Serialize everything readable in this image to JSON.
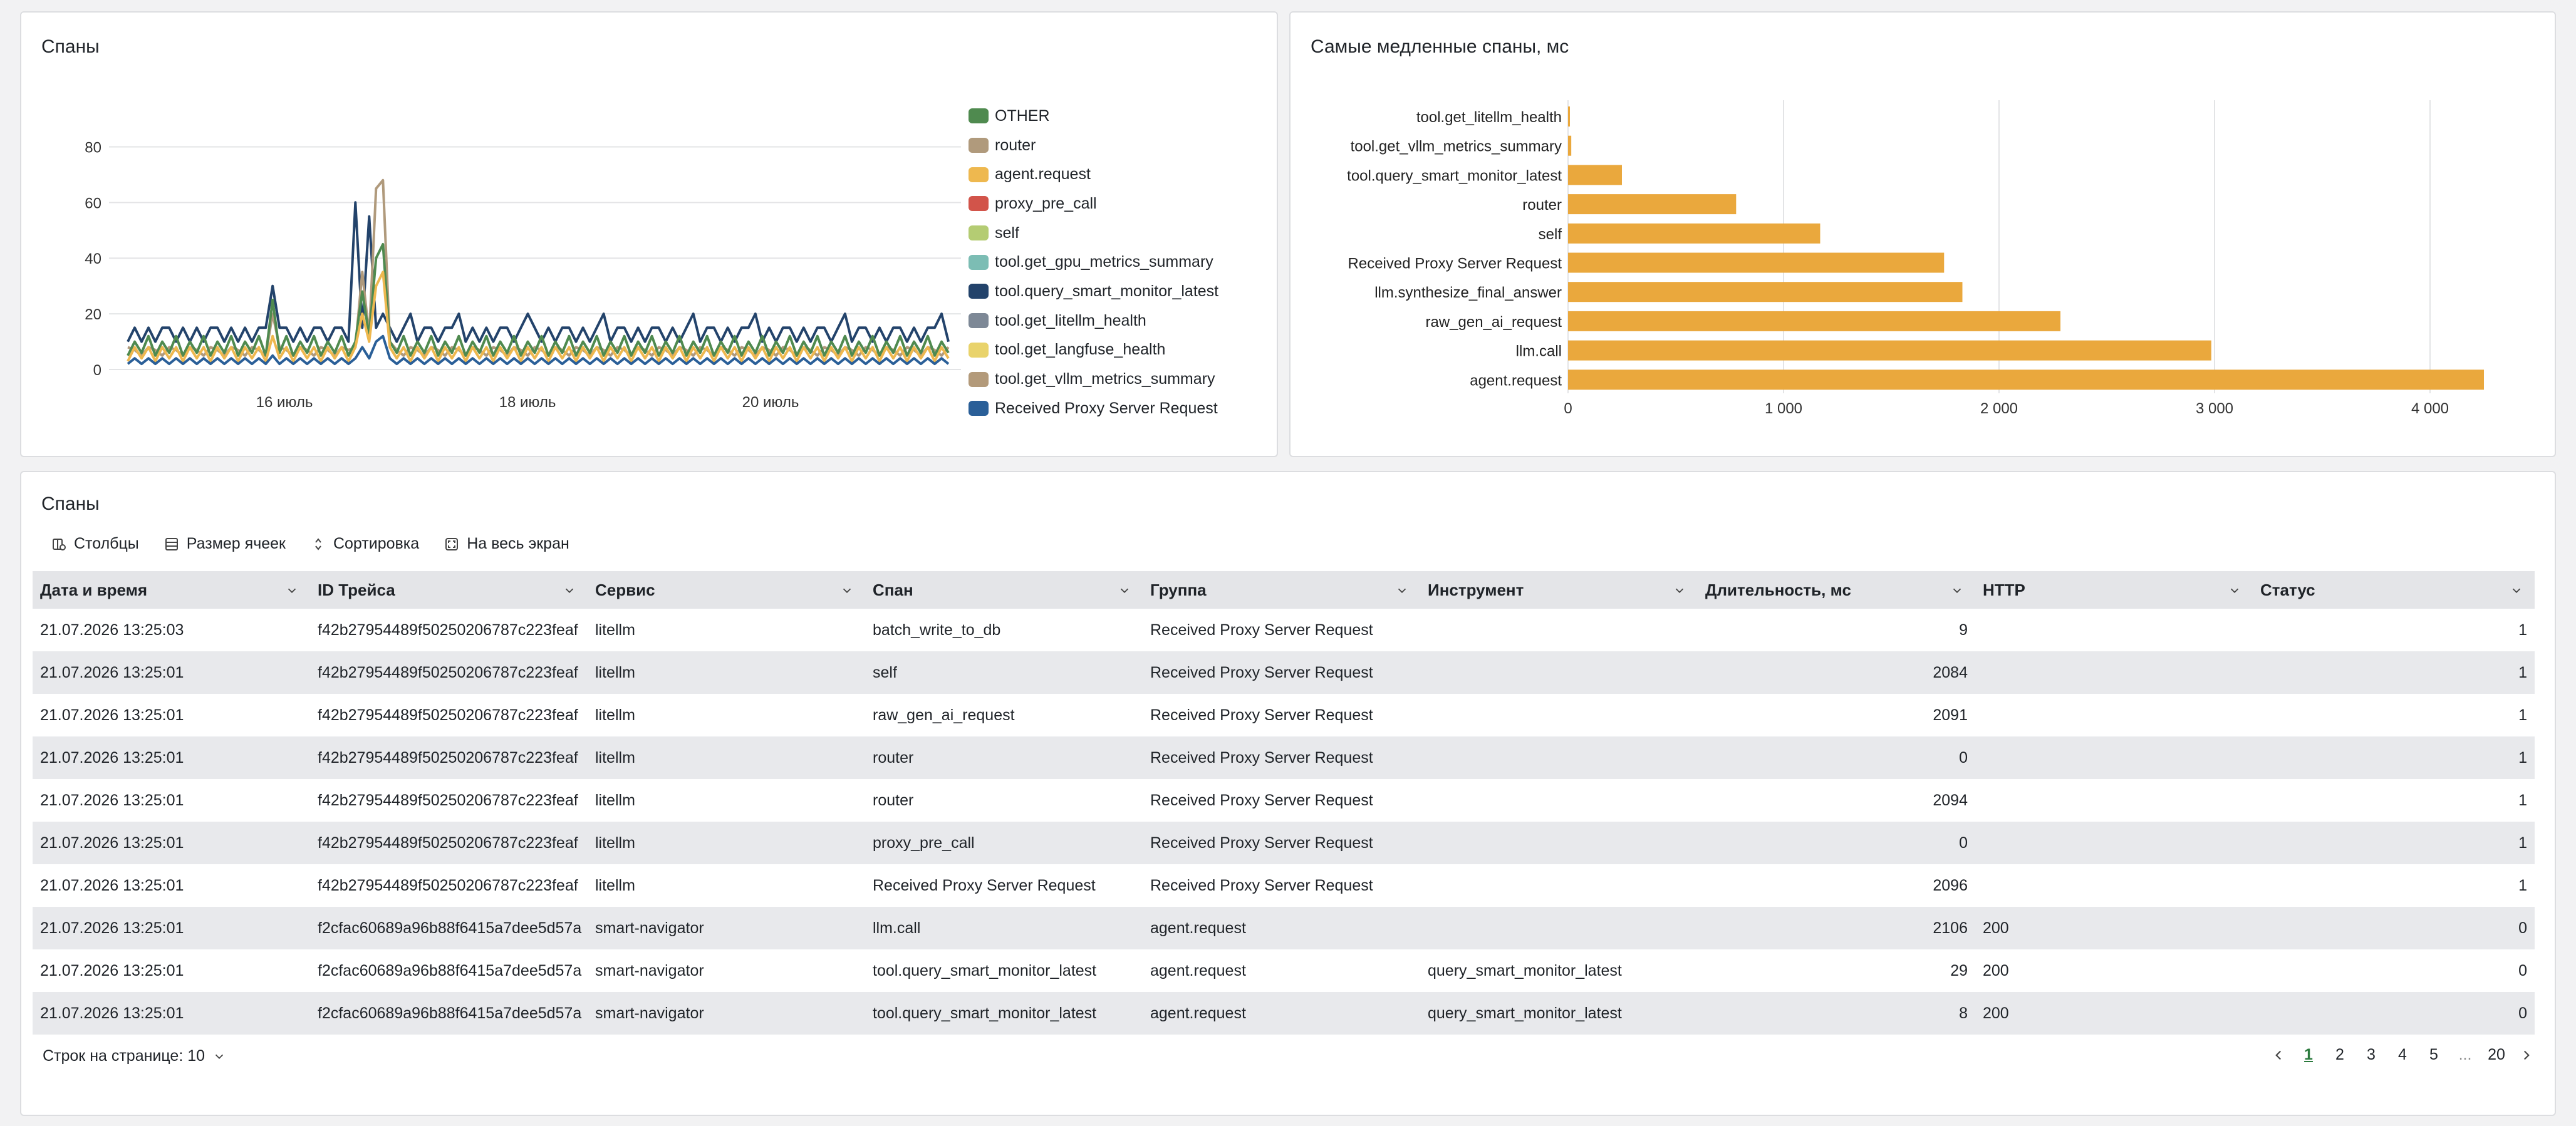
{
  "spans_chart": {
    "title": "Спаны",
    "legend": [
      {
        "label": "OTHER",
        "color": "#4f8a4f"
      },
      {
        "label": "router",
        "color": "#b09a7c"
      },
      {
        "label": "agent.request",
        "color": "#eeb84f"
      },
      {
        "label": "proxy_pre_call",
        "color": "#d2544a"
      },
      {
        "label": "self",
        "color": "#b4cc73"
      },
      {
        "label": "tool.get_gpu_metrics_summary",
        "color": "#7cbdb4"
      },
      {
        "label": "tool.query_smart_monitor_latest",
        "color": "#23436b"
      },
      {
        "label": "tool.get_litellm_health",
        "color": "#7d8896"
      },
      {
        "label": "tool.get_langfuse_health",
        "color": "#e9d36b"
      },
      {
        "label": "tool.get_vllm_metrics_summary",
        "color": "#b39a7a"
      },
      {
        "label": "Received Proxy Server Request",
        "color": "#2a5f98"
      }
    ],
    "y_ticks": [
      "0",
      "20",
      "40",
      "60",
      "80"
    ],
    "x_ticks": [
      "16 июль",
      "18 июль",
      "20 июль"
    ]
  },
  "chart_data": [
    {
      "type": "line",
      "title": "Спаны",
      "x_range": [
        "2026-07-14T12:00",
        "2026-07-21T13:25"
      ],
      "x_tick_labels": [
        "16 июль",
        "18 июль",
        "20 июль"
      ],
      "ylim": [
        0,
        90
      ],
      "grid": true,
      "legend_position": "right",
      "series": [
        {
          "name": "tool.query_smart_monitor_latest",
          "values": [
            10,
            15,
            10,
            15,
            10,
            15,
            15,
            10,
            15,
            10,
            15,
            10,
            15,
            15,
            10,
            15,
            10,
            15,
            10,
            15,
            15,
            30,
            15,
            15,
            10,
            15,
            10,
            15,
            15,
            10,
            15,
            15,
            10,
            60,
            15,
            55,
            15,
            20,
            15,
            10,
            15,
            20,
            10,
            15,
            15,
            10,
            15,
            15,
            20,
            10,
            15,
            10,
            15,
            10,
            15,
            15,
            10,
            15,
            20,
            15,
            10,
            15,
            10,
            15,
            15,
            10,
            15,
            10,
            15,
            20,
            10,
            15,
            15,
            10,
            15,
            10,
            15,
            15,
            10,
            15,
            10,
            15,
            20,
            10,
            15,
            15,
            10,
            15,
            10,
            15,
            15,
            20,
            10,
            15,
            10,
            15,
            15,
            10,
            15,
            10,
            15,
            15,
            10,
            15,
            20,
            10,
            15,
            15,
            10,
            15,
            10,
            15,
            15,
            10,
            15,
            10,
            15,
            15,
            20,
            10
          ]
        },
        {
          "name": "router",
          "values": [
            8,
            7,
            5,
            8,
            7,
            5,
            8,
            7,
            5,
            8,
            7,
            5,
            8,
            7,
            5,
            8,
            7,
            5,
            8,
            7,
            5,
            20,
            8,
            7,
            5,
            8,
            7,
            5,
            8,
            7,
            5,
            8,
            7,
            8,
            35,
            12,
            65,
            68,
            10,
            7,
            5,
            8,
            7,
            5,
            8,
            7,
            5,
            8,
            7,
            5,
            8,
            7,
            5,
            8,
            7,
            5,
            8,
            7,
            5,
            8,
            7,
            5,
            8,
            7,
            5,
            8,
            7,
            5,
            8,
            7,
            5,
            8,
            7,
            5,
            8,
            7,
            5,
            8,
            7,
            5,
            8,
            7,
            5,
            8,
            7,
            5,
            8,
            7,
            5,
            8,
            7,
            5,
            8,
            7,
            5,
            8,
            7,
            5,
            8,
            7,
            5,
            8,
            7,
            5,
            8,
            7,
            5,
            8,
            7,
            5,
            8,
            7,
            5,
            8,
            7,
            5,
            8,
            7,
            5,
            8
          ]
        },
        {
          "name": "OTHER",
          "values": [
            5,
            10,
            6,
            12,
            5,
            10,
            6,
            12,
            5,
            10,
            6,
            12,
            5,
            10,
            6,
            12,
            5,
            10,
            6,
            12,
            5,
            25,
            6,
            12,
            5,
            10,
            6,
            12,
            5,
            10,
            6,
            12,
            5,
            10,
            28,
            12,
            40,
            45,
            10,
            6,
            12,
            5,
            10,
            6,
            12,
            5,
            10,
            6,
            12,
            5,
            10,
            6,
            12,
            5,
            10,
            6,
            12,
            5,
            10,
            6,
            12,
            5,
            10,
            6,
            12,
            5,
            10,
            6,
            12,
            5,
            10,
            6,
            12,
            5,
            10,
            6,
            12,
            5,
            10,
            6,
            12,
            5,
            10,
            6,
            12,
            5,
            10,
            6,
            12,
            5,
            10,
            6,
            12,
            5,
            10,
            6,
            12,
            5,
            10,
            6,
            12,
            5,
            10,
            6,
            12,
            5,
            10,
            6,
            12,
            5,
            10,
            6,
            12,
            5,
            10,
            6,
            12,
            5,
            10,
            6
          ]
        },
        {
          "name": "agent.request",
          "values": [
            3,
            8,
            4,
            8,
            3,
            8,
            4,
            8,
            3,
            8,
            4,
            8,
            3,
            8,
            4,
            8,
            3,
            8,
            4,
            8,
            3,
            12,
            4,
            8,
            3,
            8,
            4,
            8,
            3,
            8,
            4,
            8,
            3,
            8,
            20,
            10,
            30,
            35,
            8,
            4,
            8,
            3,
            8,
            4,
            8,
            3,
            8,
            4,
            8,
            3,
            8,
            4,
            8,
            3,
            8,
            4,
            8,
            3,
            8,
            4,
            8,
            3,
            8,
            4,
            8,
            3,
            8,
            4,
            8,
            3,
            8,
            4,
            8,
            3,
            8,
            4,
            8,
            3,
            8,
            4,
            8,
            3,
            8,
            4,
            8,
            3,
            8,
            4,
            8,
            3,
            8,
            4,
            8,
            3,
            8,
            4,
            8,
            3,
            8,
            4,
            8,
            3,
            8,
            4,
            8,
            3,
            8,
            4,
            8,
            3,
            8,
            4,
            8,
            3,
            8,
            4,
            8,
            3,
            8,
            4
          ]
        },
        {
          "name": "Received Proxy Server Request",
          "values": [
            2,
            4,
            2,
            4,
            2,
            4,
            2,
            4,
            2,
            4,
            2,
            4,
            2,
            4,
            2,
            4,
            2,
            4,
            2,
            4,
            2,
            5,
            2,
            4,
            2,
            4,
            2,
            4,
            2,
            4,
            2,
            4,
            2,
            4,
            8,
            4,
            10,
            12,
            4,
            2,
            4,
            2,
            4,
            2,
            4,
            2,
            4,
            2,
            4,
            2,
            4,
            2,
            4,
            2,
            4,
            2,
            4,
            2,
            4,
            2,
            4,
            2,
            4,
            2,
            4,
            2,
            4,
            2,
            4,
            2,
            4,
            2,
            4,
            2,
            4,
            2,
            4,
            2,
            4,
            2,
            4,
            2,
            4,
            2,
            4,
            2,
            4,
            2,
            4,
            2,
            4,
            2,
            4,
            2,
            4,
            2,
            4,
            2,
            4,
            2,
            4,
            2,
            4,
            2,
            4,
            2,
            4,
            2,
            4,
            2,
            4,
            2,
            4,
            2,
            4,
            2,
            4,
            2,
            4,
            2
          ]
        }
      ]
    },
    {
      "type": "bar",
      "orientation": "horizontal",
      "title": "Самые медленные спаны, мс",
      "categories": [
        "tool.get_litellm_health",
        "tool.get_vllm_metrics_summary",
        "tool.query_smart_monitor_latest",
        "router",
        "self",
        "Received Proxy Server Request",
        "llm.synthesize_final_answer",
        "raw_gen_ai_request",
        "llm.call",
        "agent.request"
      ],
      "values": [
        8,
        15,
        250,
        780,
        1170,
        1745,
        1830,
        2285,
        2985,
        4250
      ],
      "xlim": [
        0,
        4300
      ],
      "x_tick_labels": [
        "0",
        "1 000",
        "2 000",
        "3 000",
        "4 000"
      ],
      "grid": true,
      "color": "#eaa83d"
    }
  ],
  "slowest_chart": {
    "title": "Самые медленные спаны, мс",
    "x_ticks": [
      "0",
      "1 000",
      "2 000",
      "3 000",
      "4 000"
    ]
  },
  "table": {
    "title": "Спаны",
    "toolbar": {
      "columns": "Столбцы",
      "cell_size": "Размер ячеек",
      "sort": "Сортировка",
      "fullscreen": "На весь экран"
    },
    "headers": [
      "Дата и время",
      "ID Трейса",
      "Сервис",
      "Спан",
      "Группа",
      "Инструмент",
      "Длительность, мс",
      "HTTP",
      "Статус"
    ],
    "rows": [
      [
        "21.07.2026 13:25:03",
        "f42b27954489f50250206787c223feaf",
        "litellm",
        "batch_write_to_db",
        "Received Proxy Server Request",
        "",
        "9",
        "",
        "1"
      ],
      [
        "21.07.2026 13:25:01",
        "f42b27954489f50250206787c223feaf",
        "litellm",
        "self",
        "Received Proxy Server Request",
        "",
        "2084",
        "",
        "1"
      ],
      [
        "21.07.2026 13:25:01",
        "f42b27954489f50250206787c223feaf",
        "litellm",
        "raw_gen_ai_request",
        "Received Proxy Server Request",
        "",
        "2091",
        "",
        "1"
      ],
      [
        "21.07.2026 13:25:01",
        "f42b27954489f50250206787c223feaf",
        "litellm",
        "router",
        "Received Proxy Server Request",
        "",
        "0",
        "",
        "1"
      ],
      [
        "21.07.2026 13:25:01",
        "f42b27954489f50250206787c223feaf",
        "litellm",
        "router",
        "Received Proxy Server Request",
        "",
        "2094",
        "",
        "1"
      ],
      [
        "21.07.2026 13:25:01",
        "f42b27954489f50250206787c223feaf",
        "litellm",
        "proxy_pre_call",
        "Received Proxy Server Request",
        "",
        "0",
        "",
        "1"
      ],
      [
        "21.07.2026 13:25:01",
        "f42b27954489f50250206787c223feaf",
        "litellm",
        "Received Proxy Server Request",
        "Received Proxy Server Request",
        "",
        "2096",
        "",
        "1"
      ],
      [
        "21.07.2026 13:25:01",
        "f2cfac60689a96b88f6415a7dee5d57a",
        "smart-navigator",
        "llm.call",
        "agent.request",
        "",
        "2106",
        "200",
        "0"
      ],
      [
        "21.07.2026 13:25:01",
        "f2cfac60689a96b88f6415a7dee5d57a",
        "smart-navigator",
        "tool.query_smart_monitor_latest",
        "agent.request",
        "query_smart_monitor_latest",
        "29",
        "200",
        "0"
      ],
      [
        "21.07.2026 13:25:01",
        "f2cfac60689a96b88f6415a7dee5d57a",
        "smart-navigator",
        "tool.query_smart_monitor_latest",
        "agent.request",
        "query_smart_monitor_latest",
        "8",
        "200",
        "0"
      ]
    ],
    "footer": {
      "rows_per_page": "Строк на странице: 10",
      "pages": [
        "1",
        "2",
        "3",
        "4",
        "5",
        "...",
        "20"
      ],
      "current_page": "1"
    }
  }
}
